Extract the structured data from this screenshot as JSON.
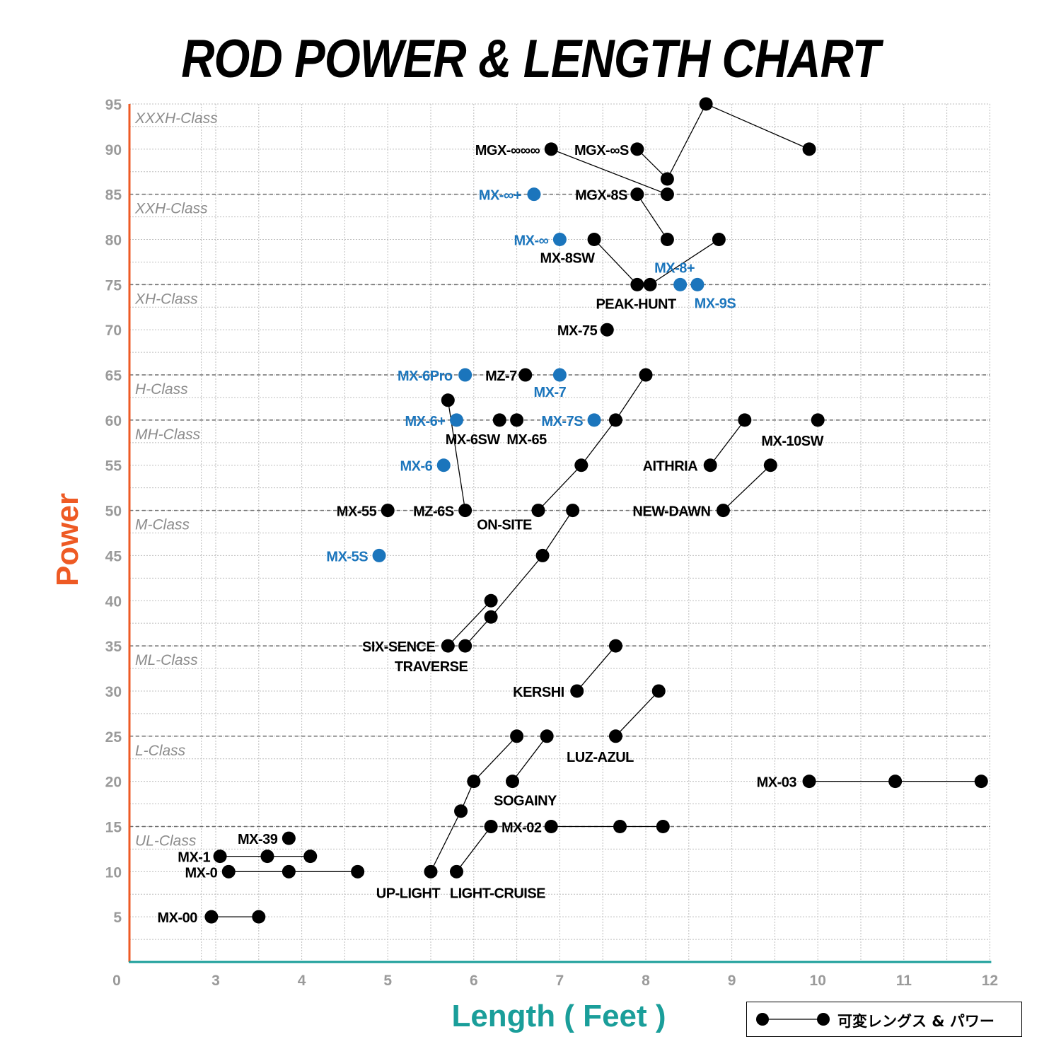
{
  "chart_data": {
    "type": "scatter",
    "title": "ROD POWER & LENGTH CHART",
    "xlabel": "Length ( Feet )",
    "ylabel": "Power",
    "xlim": [
      0,
      12
    ],
    "ylim": [
      0,
      95
    ],
    "x_ticks": [
      "0",
      "3",
      "4",
      "5",
      "6",
      "7",
      "8",
      "9",
      "10",
      "11",
      "12"
    ],
    "y_ticks": [
      5,
      10,
      15,
      20,
      25,
      30,
      35,
      40,
      45,
      50,
      55,
      60,
      65,
      70,
      75,
      80,
      85,
      90,
      95
    ],
    "grid": true,
    "legend_placement": "bottom-right",
    "colors": {
      "standard": "#000000",
      "highlight": "#1b75bc",
      "y_axis": "#ee5a24",
      "x_axis": "#1a9e9a",
      "class_label": "#8c8c8c",
      "grid": "#bdbdbd"
    },
    "classes": [
      {
        "label": "XXXH-Class",
        "y": 95
      },
      {
        "label": "XXH-Class",
        "y": 85
      },
      {
        "label": "XH-Class",
        "y": 75
      },
      {
        "label": "H-Class",
        "y": 65
      },
      {
        "label": "MH-Class",
        "y": 60
      },
      {
        "label": "M-Class",
        "y": 50
      },
      {
        "label": "ML-Class",
        "y": 35
      },
      {
        "label": "L-Class",
        "y": 25
      },
      {
        "label": "UL-Class",
        "y": 15
      }
    ],
    "class_lines": [
      15,
      25,
      35,
      50,
      60,
      65,
      75,
      85
    ],
    "series": [
      {
        "name": "MX-00",
        "points": [
          [
            2.85,
            5
          ],
          [
            3.5,
            5
          ]
        ],
        "label_at": 0
      },
      {
        "name": "MX-0",
        "points": [
          [
            3.15,
            10
          ],
          [
            3.85,
            10
          ],
          [
            4.65,
            10
          ]
        ],
        "label_at": 0
      },
      {
        "name": "MX-1",
        "points": [
          [
            3.05,
            11.7
          ],
          [
            3.6,
            11.7
          ],
          [
            4.1,
            11.7
          ]
        ],
        "label_at": 0
      },
      {
        "name": "MX-39",
        "points": [
          [
            3.85,
            13.7
          ]
        ],
        "label_at": 0
      },
      {
        "name": "UP-LIGHT",
        "points": [
          [
            5.5,
            10
          ],
          [
            5.85,
            16.7
          ],
          [
            6.0,
            20
          ],
          [
            6.5,
            25
          ]
        ],
        "label_at": 0
      },
      {
        "name": "LIGHT-CRUISE",
        "points": [
          [
            5.8,
            10
          ],
          [
            6.2,
            15
          ]
        ],
        "label_at": 0
      },
      {
        "name": "MX-02",
        "points": [
          [
            6.9,
            15
          ],
          [
            7.7,
            15
          ],
          [
            8.2,
            15
          ]
        ],
        "label_at": 0
      },
      {
        "name": "SOGAINY",
        "points": [
          [
            6.45,
            20
          ],
          [
            6.85,
            25
          ]
        ],
        "label_at": 0
      },
      {
        "name": "LUZ-AZUL",
        "points": [
          [
            7.65,
            25
          ],
          [
            8.15,
            30
          ]
        ],
        "label_at": 0
      },
      {
        "name": "MX-03",
        "points": [
          [
            9.9,
            20
          ],
          [
            10.9,
            20
          ],
          [
            11.9,
            20
          ]
        ],
        "label_at": 0
      },
      {
        "name": "KERSHI",
        "points": [
          [
            7.2,
            30
          ],
          [
            7.65,
            35
          ]
        ],
        "label_at": 0
      },
      {
        "name": "SIX-SENCE",
        "points": [
          [
            5.7,
            35
          ],
          [
            6.2,
            40
          ]
        ],
        "label_at": 0
      },
      {
        "name": "TRAVERSE",
        "points": [
          [
            5.9,
            35
          ],
          [
            6.2,
            38.2
          ],
          [
            6.8,
            45
          ],
          [
            7.15,
            50
          ]
        ],
        "label_at": 0
      },
      {
        "name": "MX-5S",
        "points": [
          [
            4.9,
            45
          ]
        ],
        "label_at": 0,
        "highlight": true
      },
      {
        "name": "MX-55",
        "points": [
          [
            5.0,
            50
          ]
        ],
        "label_at": 0
      },
      {
        "name": "MZ-6S",
        "points": [
          [
            5.9,
            50
          ],
          [
            5.7,
            62.2
          ]
        ],
        "label_at": 0
      },
      {
        "name": "ON-SITE",
        "points": [
          [
            6.75,
            50
          ],
          [
            7.25,
            55
          ],
          [
            7.65,
            60
          ],
          [
            8.0,
            65
          ]
        ],
        "label_at": 0
      },
      {
        "name": "NEW-DAWN",
        "points": [
          [
            8.9,
            50
          ],
          [
            9.45,
            55
          ]
        ],
        "label_at": 0
      },
      {
        "name": "AITHRIA",
        "points": [
          [
            8.75,
            55
          ],
          [
            9.15,
            60
          ]
        ],
        "label_at": 0
      },
      {
        "name": "MX-10SW",
        "points": [
          [
            10.0,
            60
          ]
        ],
        "label_at": 0
      },
      {
        "name": "MX-6",
        "points": [
          [
            5.65,
            55
          ]
        ],
        "label_at": 0,
        "highlight": true
      },
      {
        "name": "MX-6+",
        "points": [
          [
            5.8,
            60
          ]
        ],
        "label_at": 0,
        "highlight": true
      },
      {
        "name": "MX-6SW",
        "points": [
          [
            6.3,
            60
          ]
        ],
        "label_at": 0
      },
      {
        "name": "MX-65",
        "points": [
          [
            6.5,
            60
          ]
        ],
        "label_at": 0
      },
      {
        "name": "MX-7S",
        "points": [
          [
            7.4,
            60
          ]
        ],
        "label_at": 0,
        "highlight": true
      },
      {
        "name": "MX-6Pro",
        "points": [
          [
            5.9,
            65
          ]
        ],
        "label_at": 0,
        "highlight": true
      },
      {
        "name": "MZ-7",
        "points": [
          [
            6.6,
            65
          ]
        ],
        "label_at": 0
      },
      {
        "name": "MX-7",
        "points": [
          [
            7.0,
            65
          ]
        ],
        "label_at": 0,
        "highlight": true
      },
      {
        "name": "MX-75",
        "points": [
          [
            7.55,
            70
          ]
        ],
        "label_at": 0
      },
      {
        "name": "MX-∞",
        "points": [
          [
            7.0,
            80
          ]
        ],
        "label_at": 0,
        "highlight": true
      },
      {
        "name": "MX-8SW",
        "points": [
          [
            7.4,
            80
          ],
          [
            7.9,
            75
          ]
        ],
        "label_at": 0
      },
      {
        "name": "PEAK-HUNT",
        "points": [
          [
            8.05,
            75
          ],
          [
            8.85,
            80
          ]
        ],
        "label_at": 0
      },
      {
        "name": "MX-8+",
        "points": [
          [
            8.4,
            75
          ]
        ],
        "label_at": 0,
        "highlight": true
      },
      {
        "name": "MX-9S",
        "points": [
          [
            8.6,
            75
          ]
        ],
        "label_at": 0,
        "highlight": true
      },
      {
        "name": "MX-∞+",
        "points": [
          [
            6.7,
            85
          ]
        ],
        "label_at": 0,
        "highlight": true
      },
      {
        "name": "MGX-8S",
        "points": [
          [
            7.9,
            85
          ],
          [
            8.25,
            80
          ]
        ],
        "label_at": 0
      },
      {
        "name": "MGX-∞∞∞",
        "points": [
          [
            6.9,
            90
          ],
          [
            8.25,
            85
          ]
        ],
        "label_at": 0
      },
      {
        "name": "MGX-∞S",
        "points": [
          [
            7.9,
            90
          ],
          [
            8.25,
            86.7
          ],
          [
            8.7,
            95
          ],
          [
            9.9,
            90
          ]
        ],
        "label_at": 0
      }
    ]
  },
  "legend": {
    "label": "可変レングス & パワー"
  }
}
